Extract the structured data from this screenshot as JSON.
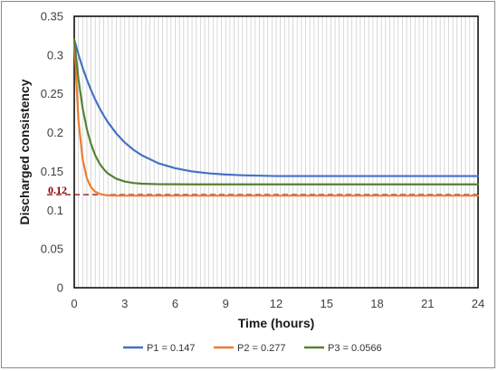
{
  "chart_data": {
    "type": "line",
    "title": "",
    "xlabel": "Time (hours)",
    "ylabel": "Discharged consistency",
    "xlim": [
      0,
      24
    ],
    "ylim": [
      0,
      0.35
    ],
    "x_ticks": [
      0,
      3,
      6,
      9,
      12,
      15,
      18,
      21,
      24
    ],
    "x_tick_labels": [
      "0",
      "3",
      "6",
      "9",
      "12",
      "15",
      "18",
      "21",
      "24"
    ],
    "y_ticks": [
      0,
      0.05,
      0.1,
      0.15,
      0.2,
      0.25,
      0.3,
      0.35
    ],
    "y_tick_labels": [
      "0",
      "0.05",
      "0.1",
      "0.15",
      "0.2",
      "0.25",
      "0.3",
      "0.35"
    ],
    "grid": "vertical",
    "legend_position": "bottom",
    "reference_line": {
      "y": 0.12,
      "label": "0.12",
      "color": "#8b0000"
    },
    "x": [
      0,
      0.25,
      0.5,
      0.75,
      1,
      1.25,
      1.5,
      1.75,
      2,
      2.5,
      3,
      3.5,
      4,
      5,
      6,
      7,
      8,
      9,
      10,
      12,
      14,
      16,
      18,
      20,
      22,
      24
    ],
    "series": [
      {
        "name": "P1 = 0.147",
        "color": "#4472c4",
        "values": [
          0.32,
          0.3008,
          0.2836,
          0.2683,
          0.2547,
          0.2425,
          0.2317,
          0.222,
          0.2134,
          0.1989,
          0.1873,
          0.1782,
          0.1709,
          0.1605,
          0.1541,
          0.15,
          0.1475,
          0.146,
          0.145,
          0.144,
          0.144,
          0.144,
          0.144,
          0.144,
          0.144,
          0.144
        ]
      },
      {
        "name": "P2 = 0.277",
        "color": "#ed7d31",
        "values": [
          0.32,
          0.2157,
          0.1654,
          0.1411,
          0.1294,
          0.1238,
          0.1211,
          0.1198,
          0.1191,
          0.1188,
          0.1188,
          0.1188,
          0.1188,
          0.1188,
          0.1188,
          0.1188,
          0.1188,
          0.1188,
          0.1188,
          0.1188,
          0.1188,
          0.1188,
          0.1188,
          0.1188,
          0.1188,
          0.1188
        ]
      },
      {
        "name": "P3 = 0.0566",
        "color": "#548235",
        "values": [
          0.32,
          0.2688,
          0.2315,
          0.2045,
          0.1849,
          0.1706,
          0.1603,
          0.1528,
          0.1473,
          0.1405,
          0.137,
          0.1351,
          0.1342,
          0.1335,
          0.1334,
          0.1333,
          0.1333,
          0.1333,
          0.1333,
          0.1333,
          0.1333,
          0.1333,
          0.1333,
          0.1333,
          0.1333,
          0.1333
        ]
      }
    ]
  }
}
